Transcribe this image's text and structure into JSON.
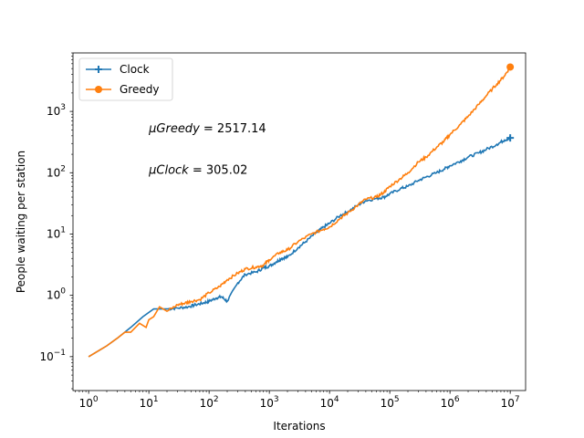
{
  "chart_data": {
    "type": "line",
    "xscale": "log",
    "yscale": "log",
    "xlabel": "Iterations",
    "ylabel": "People waiting per station",
    "xlim": [
      0.55,
      18000000
    ],
    "ylim": [
      0.028,
      9000
    ],
    "xticks": [
      {
        "base": "10",
        "exp": "0",
        "value": 1
      },
      {
        "base": "10",
        "exp": "1",
        "value": 10
      },
      {
        "base": "10",
        "exp": "2",
        "value": 100
      },
      {
        "base": "10",
        "exp": "3",
        "value": 1000
      },
      {
        "base": "10",
        "exp": "4",
        "value": 10000
      },
      {
        "base": "10",
        "exp": "5",
        "value": 100000
      },
      {
        "base": "10",
        "exp": "6",
        "value": 1000000
      },
      {
        "base": "10",
        "exp": "7",
        "value": 10000000
      }
    ],
    "yticks": [
      {
        "base": "10",
        "exp": "−1",
        "value": 0.1
      },
      {
        "base": "10",
        "exp": "0",
        "value": 1
      },
      {
        "base": "10",
        "exp": "1",
        "value": 10
      },
      {
        "base": "10",
        "exp": "2",
        "value": 100
      },
      {
        "base": "10",
        "exp": "3",
        "value": 1000
      }
    ],
    "grid": false,
    "legend_position": "top-left",
    "series": [
      {
        "name": "Clock",
        "color": "#1f77b4",
        "marker": "plus",
        "x": [
          1,
          2,
          3,
          5,
          8,
          12,
          15,
          20,
          30,
          45,
          60,
          80,
          100,
          130,
          160,
          200,
          300,
          400,
          600,
          800,
          1000,
          1300,
          1600,
          2000,
          3000,
          4000,
          6000,
          8000,
          10000,
          15000,
          20000,
          30000,
          40000,
          60000,
          80000,
          100000,
          150000,
          200000,
          300000,
          400000,
          600000,
          800000,
          1000000,
          1500000,
          2000000,
          3000000,
          4000000,
          6000000,
          8000000,
          10000000
        ],
        "y": [
          0.1,
          0.15,
          0.2,
          0.3,
          0.45,
          0.6,
          0.6,
          0.6,
          0.62,
          0.65,
          0.7,
          0.75,
          0.8,
          0.9,
          0.95,
          0.8,
          1.6,
          2.2,
          2.4,
          2.8,
          3.0,
          3.5,
          4.0,
          4.2,
          6.0,
          7.5,
          10.5,
          13,
          15,
          20,
          23,
          30,
          35,
          38,
          40,
          45,
          55,
          60,
          75,
          85,
          100,
          115,
          130,
          155,
          180,
          210,
          240,
          290,
          340,
          370
        ]
      },
      {
        "name": "Greedy",
        "color": "#ff7f0e",
        "marker": "circle",
        "x": [
          1,
          2,
          3,
          4,
          5,
          7,
          9,
          10,
          12,
          15,
          20,
          30,
          40,
          50,
          70,
          100,
          150,
          200,
          300,
          400,
          600,
          800,
          1000,
          1500,
          2000,
          3000,
          5000,
          8000,
          10000,
          15000,
          20000,
          30000,
          40000,
          60000,
          80000,
          100000,
          150000,
          200000,
          300000,
          400000,
          600000,
          800000,
          1000000,
          1500000,
          2000000,
          3000000,
          4000000,
          6000000,
          8000000,
          10000000
        ],
        "y": [
          0.1,
          0.15,
          0.2,
          0.25,
          0.25,
          0.35,
          0.3,
          0.4,
          0.45,
          0.65,
          0.55,
          0.7,
          0.75,
          0.8,
          0.85,
          1.1,
          1.4,
          1.8,
          2.3,
          2.7,
          2.9,
          3.1,
          3.8,
          5.0,
          5.5,
          7.5,
          10,
          12,
          13,
          18,
          22,
          30,
          37,
          40,
          48,
          60,
          80,
          100,
          150,
          180,
          260,
          330,
          420,
          620,
          830,
          1300,
          1800,
          2800,
          3800,
          5300
        ]
      }
    ],
    "annotations": [
      {
        "mu": "μ",
        "name": "Greedy",
        "eq": " = 2517.14",
        "x": 10,
        "y": 520
      },
      {
        "mu": "μ",
        "name": "Clock",
        "eq": " = 305.02",
        "x": 10,
        "y": 110
      }
    ]
  }
}
